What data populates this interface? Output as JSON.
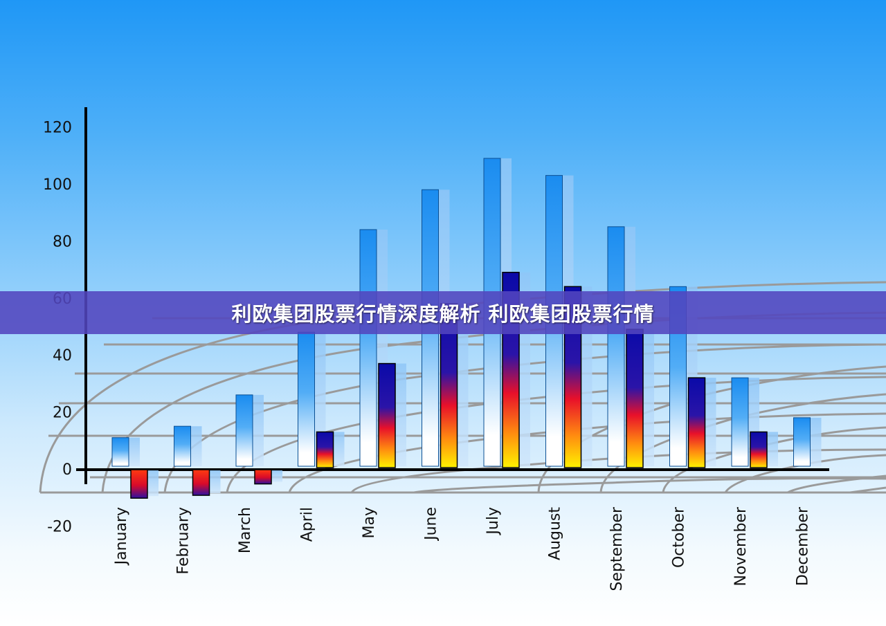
{
  "banner": {
    "title": "利欧集团股票行情深度解析 利欧集团股票行情"
  },
  "chart_data": {
    "type": "bar",
    "ylim": [
      -20,
      120
    ],
    "yticks": [
      120,
      100,
      80,
      60,
      40,
      20,
      0,
      -20
    ],
    "grid": "perspective floor grid",
    "categories": [
      "January",
      "February",
      "March",
      "April",
      "May",
      "June",
      "July",
      "August",
      "September",
      "October",
      "November",
      "December"
    ],
    "series": [
      {
        "values": [
          11,
          15,
          26,
          48,
          84,
          98,
          109,
          103,
          85,
          64,
          32,
          18
        ],
        "style": "blue-to-white gradient"
      },
      {
        "values": [
          -10,
          -9,
          -5,
          13,
          37,
          58,
          69,
          64,
          49,
          32,
          13,
          null
        ],
        "style": "blue-red-yellow gradient"
      }
    ],
    "colors": {
      "primary_top": "#1a8cf0",
      "secondary_top": "#0a0aa8",
      "secondary_mid": "#e8102a",
      "secondary_bottom": "#fff200",
      "axis": "#000000",
      "grid": "#9a9a9a"
    }
  }
}
